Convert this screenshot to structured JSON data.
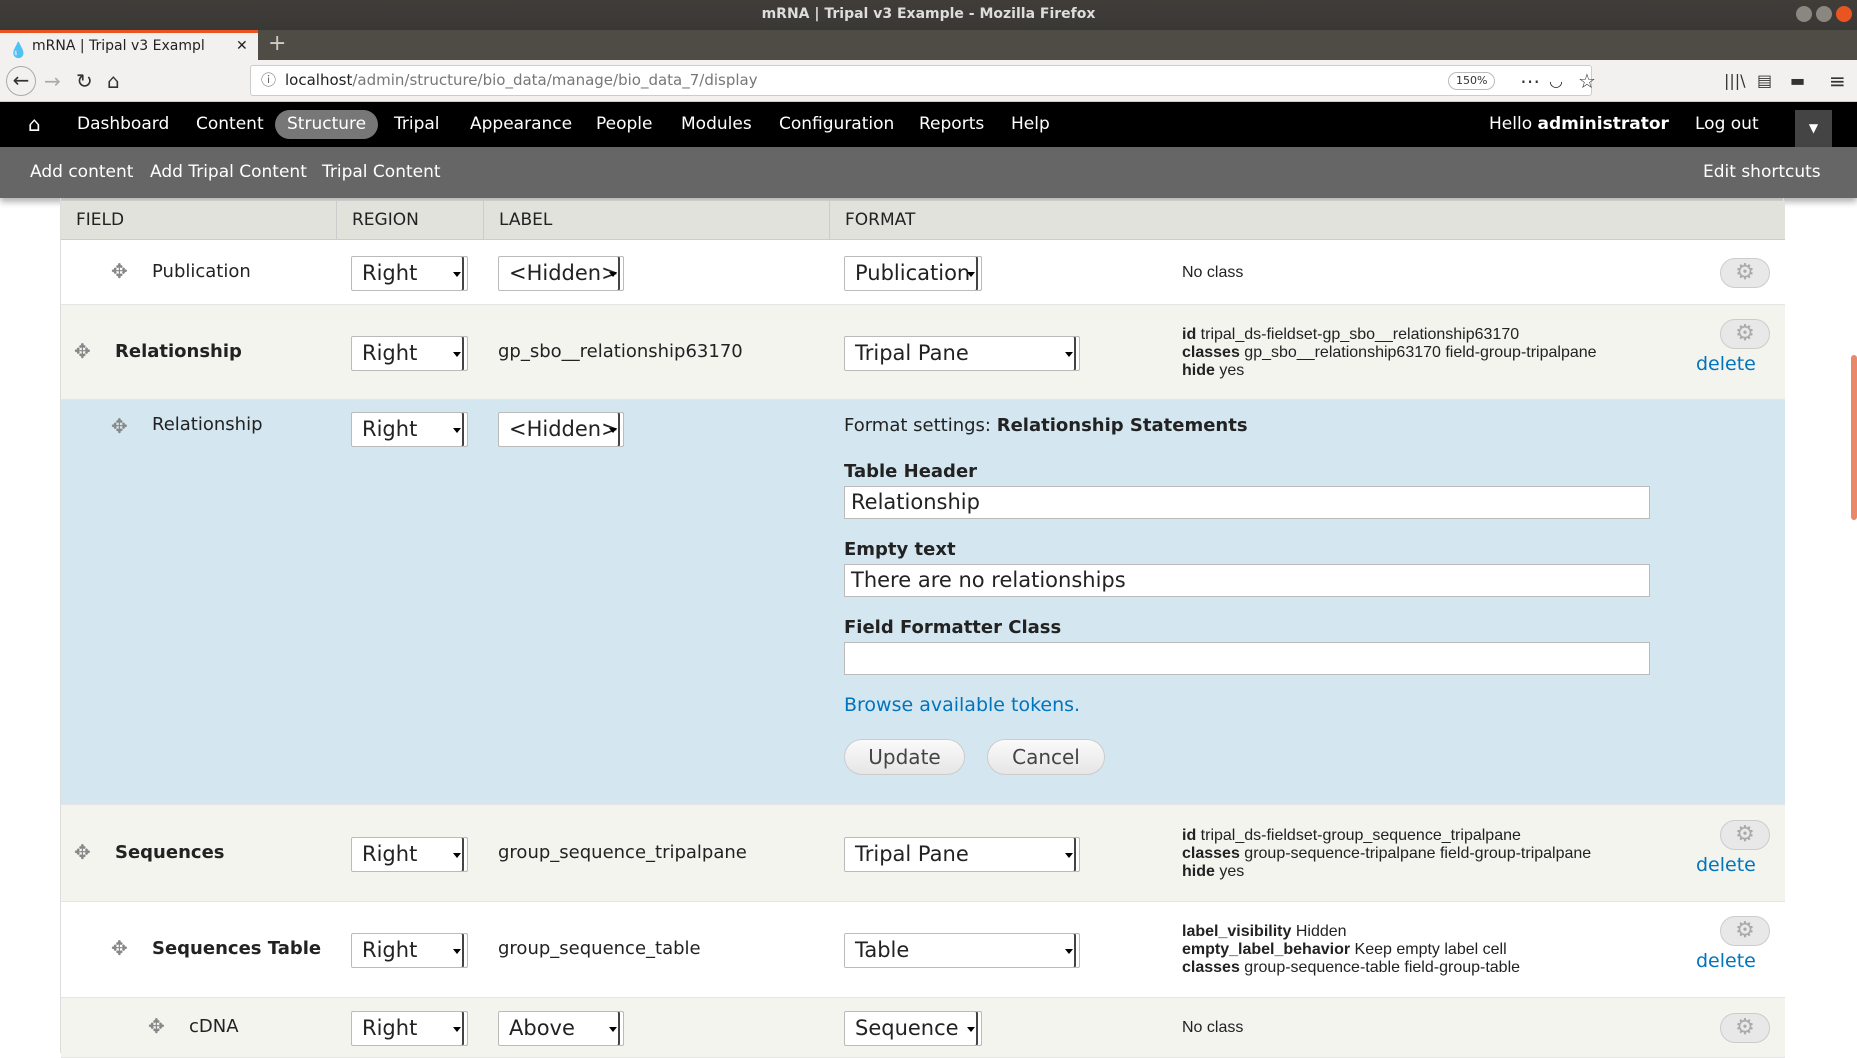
{
  "window": {
    "title": "mRNA | Tripal v3 Example - Mozilla Firefox"
  },
  "browser": {
    "tab_title": "mRNA | Tripal v3 Exampl",
    "url_host": "localhost",
    "url_path": "/admin/structure/bio_data/manage/bio_data_7/display",
    "zoom": "150%"
  },
  "toolbar": {
    "items": [
      "Dashboard",
      "Content",
      "Structure",
      "Tripal",
      "Appearance",
      "People",
      "Modules",
      "Configuration",
      "Reports",
      "Help"
    ],
    "active": "Structure",
    "greeting": "Hello",
    "user": "administrator",
    "logout": "Log out"
  },
  "shortcuts": {
    "items": [
      "Add content",
      "Add Tripal Content",
      "Tripal Content"
    ],
    "edit": "Edit shortcuts"
  },
  "table": {
    "headers": [
      "Field",
      "Region",
      "Label",
      "Format"
    ],
    "rows": [
      {
        "field": "Publication",
        "bold": false,
        "level": 1,
        "region": "Right",
        "label": "<Hidden>",
        "label_select": true,
        "format": "Publication",
        "summary": [
          {
            "k": "",
            "v": "No class"
          }
        ],
        "delete": false
      },
      {
        "field": "Relationship",
        "bold": true,
        "level": 0,
        "region": "Right",
        "label": "gp_sbo__relationship63170",
        "label_select": false,
        "format": "Tripal Pane",
        "summary": [
          {
            "k": "id",
            "v": "tripal_ds-fieldset-gp_sbo__relationship63170"
          },
          {
            "k": "classes",
            "v": "gp_sbo__relationship63170 field-group-tripalpane"
          },
          {
            "k": "hide",
            "v": "yes"
          }
        ],
        "delete": true
      },
      {
        "field": "Sequences",
        "bold": true,
        "level": 0,
        "region": "Right",
        "label": "group_sequence_tripalpane",
        "label_select": false,
        "format": "Tripal Pane",
        "summary": [
          {
            "k": "id",
            "v": "tripal_ds-fieldset-group_sequence_tripalpane"
          },
          {
            "k": "classes",
            "v": "group-sequence-tripalpane field-group-tripalpane"
          },
          {
            "k": "hide",
            "v": "yes"
          }
        ],
        "delete": true
      },
      {
        "field": "Sequences Table",
        "bold": true,
        "level": 1,
        "region": "Right",
        "label": "group_sequence_table",
        "label_select": false,
        "format": "Table",
        "summary": [
          {
            "k": "label_visibility",
            "v": "Hidden"
          },
          {
            "k": "empty_label_behavior",
            "v": "Keep empty label cell"
          },
          {
            "k": "classes",
            "v": "group-sequence-table field-group-table"
          }
        ],
        "delete": true
      },
      {
        "field": "cDNA",
        "bold": false,
        "level": 2,
        "region": "Right",
        "label": "Above",
        "label_select": true,
        "format": "Sequence",
        "summary": [
          {
            "k": "",
            "v": "No class"
          }
        ],
        "delete": false
      }
    ],
    "delete_label": "delete",
    "editing": {
      "field": "Relationship",
      "region": "Right",
      "label": "<Hidden>",
      "format_settings_prefix": "Format settings:",
      "format_settings_name": "Relationship Statements",
      "table_header_label": "Table Header",
      "table_header_value": "Relationship",
      "empty_text_label": "Empty text",
      "empty_text_value": "There are no relationships",
      "formatter_class_label": "Field Formatter Class",
      "formatter_class_value": "",
      "tokens_link": "Browse available tokens.",
      "update": "Update",
      "cancel": "Cancel"
    }
  },
  "colors": {
    "accent": "#0074bd",
    "edit_bg": "#d4e6f0",
    "row_alt": "#f3f4ee"
  }
}
